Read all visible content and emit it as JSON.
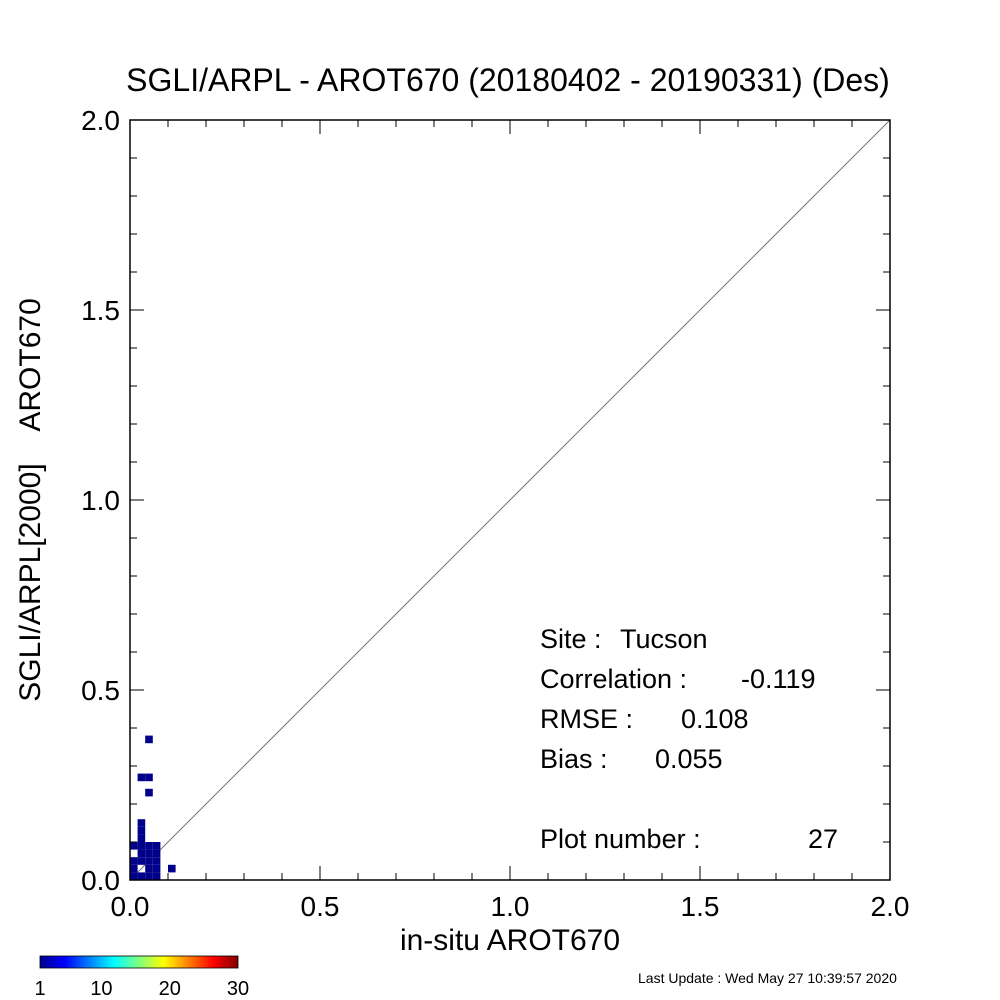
{
  "chart_data": {
    "type": "heatmap",
    "title": "SGLI/ARPL - AROT670 (20180402 - 20190331) (Des)",
    "xlabel": "in-situ AROT670",
    "ylabel": "SGLI/ARPL[2000]    AROT670",
    "xlim": [
      0.0,
      2.0
    ],
    "ylim": [
      0.0,
      2.0
    ],
    "x_ticks": [
      "0.0",
      "0.5",
      "1.0",
      "1.5",
      "2.0"
    ],
    "y_ticks": [
      "0.0",
      "0.5",
      "1.0",
      "1.5",
      "2.0"
    ],
    "reference_line": "1:1",
    "bin_size": 0.02,
    "points": [
      [
        0.01,
        0.01
      ],
      [
        0.03,
        0.01
      ],
      [
        0.05,
        0.01
      ],
      [
        0.07,
        0.01
      ],
      [
        0.01,
        0.03
      ],
      [
        0.05,
        0.03
      ],
      [
        0.07,
        0.03
      ],
      [
        0.11,
        0.03
      ],
      [
        0.01,
        0.05
      ],
      [
        0.03,
        0.05
      ],
      [
        0.05,
        0.05
      ],
      [
        0.07,
        0.05
      ],
      [
        0.03,
        0.07
      ],
      [
        0.05,
        0.07
      ],
      [
        0.07,
        0.07
      ],
      [
        0.01,
        0.09
      ],
      [
        0.03,
        0.09
      ],
      [
        0.05,
        0.09
      ],
      [
        0.07,
        0.09
      ],
      [
        0.03,
        0.11
      ],
      [
        0.03,
        0.13
      ],
      [
        0.03,
        0.15
      ],
      [
        0.05,
        0.23
      ],
      [
        0.03,
        0.27
      ],
      [
        0.05,
        0.27
      ],
      [
        0.05,
        0.37
      ]
    ],
    "colorbar": {
      "min": 1,
      "max": 30,
      "ticks": [
        "1",
        "10",
        "20",
        "30"
      ]
    }
  },
  "stats": {
    "site_label": "Site :",
    "site": "Tucson",
    "correlation_label": "Correlation :",
    "correlation": "-0.119",
    "rmse_label": "RMSE :",
    "rmse": "0.108",
    "bias_label": "Bias :",
    "bias": "0.055",
    "plot_number_label": "Plot number :",
    "plot_number": "27"
  },
  "last_update": "Last Update : Wed May 27 10:39:57 2020",
  "colors": {
    "point": "#00008b",
    "line": "#777777"
  }
}
